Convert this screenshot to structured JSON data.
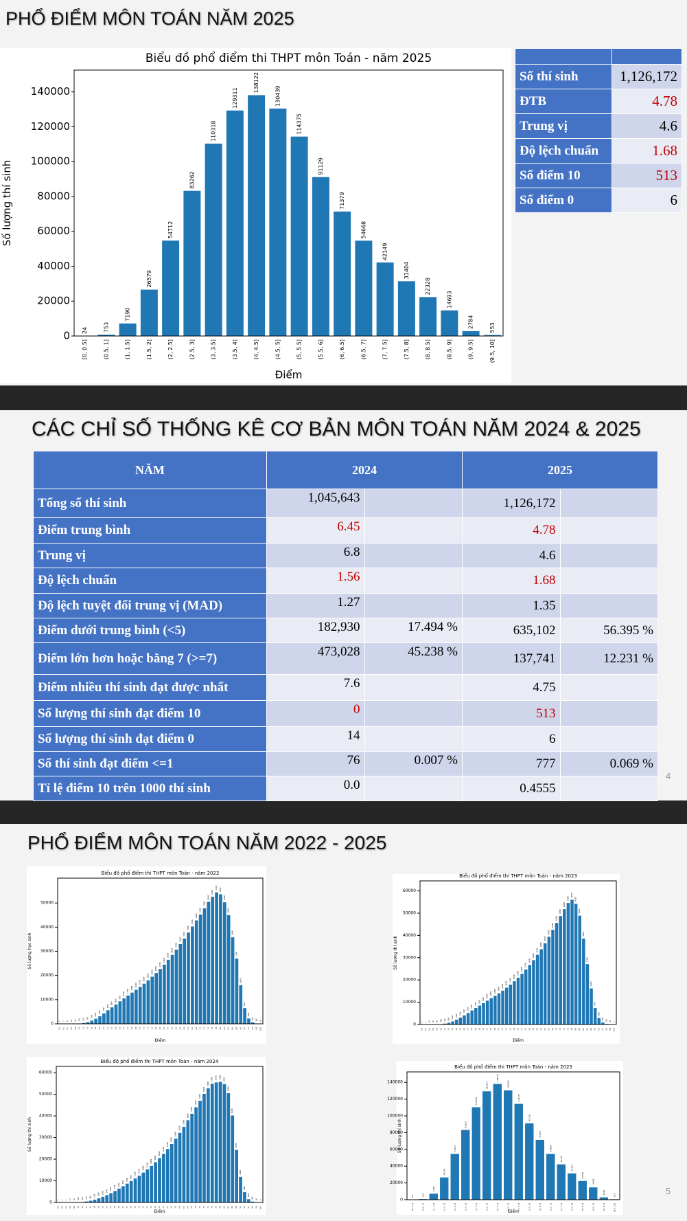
{
  "section_titles": [
    "PHỔ ĐIỂM MÔN TOÁN NĂM 2025",
    "CÁC CHỈ SỐ THỐNG KÊ CƠ BẢN MÔN TOÁN NĂM 2024 & 2025",
    "PHỔ ĐIỂM MÔN TOÁN NĂM 2022 - 2025"
  ],
  "page_numbers": [
    4,
    5
  ],
  "stats_table": {
    "highlight_color": "#c00000",
    "rows": [
      {
        "label": "Số thí sinh",
        "value": "1,126,172",
        "highlight": false
      },
      {
        "label": "ĐTB",
        "value": "4.78",
        "highlight": true
      },
      {
        "label": "Trung vị",
        "value": "4.6",
        "highlight": false
      },
      {
        "label": "Độ lệch chuẩn",
        "value": "1.68",
        "highlight": true
      },
      {
        "label": "Số điểm 10",
        "value": "513",
        "highlight": true
      },
      {
        "label": "Số điểm 0",
        "value": "6",
        "highlight": false
      }
    ]
  },
  "comparison_table": {
    "highlight_color": "#c00000",
    "header": [
      "NĂM",
      "2024",
      "2025"
    ],
    "rows": [
      {
        "cells": [
          "Tổng số thí sinh",
          "1,045,643",
          null,
          "1,126,172",
          null
        ],
        "highlight": false
      },
      {
        "cells": [
          "Điểm trung bình",
          "6.45",
          null,
          "4.78",
          null
        ],
        "highlight": true
      },
      {
        "cells": [
          "Trung vị",
          "6.8",
          null,
          "4.6",
          null
        ],
        "highlight": false
      },
      {
        "cells": [
          "Độ lệch chuẩn",
          "1.56",
          null,
          "1.68",
          null
        ],
        "highlight": true
      },
      {
        "cells": [
          "Độ lệch tuyệt đối trung vị (MAD)",
          "1.27",
          null,
          "1.35",
          null
        ],
        "highlight": false
      },
      {
        "cells": [
          "Điểm dưới trung bình (<5)",
          "182,930",
          "17.494 %",
          "635,102",
          "56.395 %"
        ],
        "highlight": false
      },
      {
        "cells": [
          "Điểm lớn hơn hoặc bằng 7 (>=7)",
          "473,028",
          "45.238 %",
          "137,741",
          "12.231 %"
        ],
        "highlight": false
      },
      {
        "cells": [
          "Điểm nhiều thí sinh đạt được nhất",
          "7.6",
          null,
          "4.75",
          null
        ],
        "highlight": false
      },
      {
        "cells": [
          "Số lượng thí sinh đạt điểm 10",
          "0",
          null,
          "513",
          null
        ],
        "highlight": true
      },
      {
        "cells": [
          "Số lượng thí sinh đạt điểm 0",
          "14",
          null,
          "6",
          null
        ],
        "highlight": false
      },
      {
        "cells": [
          "Số thí sinh đạt điểm <=1",
          "76",
          "0.007 %",
          "777",
          "0.069 %"
        ],
        "highlight": false
      },
      {
        "cells": [
          "Tỉ lệ điểm 10 trên 1000 thí sinh",
          "0.0",
          null,
          "0.4555",
          null
        ],
        "highlight": false
      }
    ]
  },
  "chart_data": [
    {
      "type": "bar",
      "title": "Biểu đồ phổ điểm thi THPT môn Toán - năm 2025",
      "x_label": "Điểm",
      "y_label": "Số lượng thí sinh",
      "color": "#1f77b4",
      "categories": [
        "[0, 0.5]",
        "(0.5, 1]",
        "(1, 1.5]",
        "(1.5, 2]",
        "(2, 2.5]",
        "(2.5, 3]",
        "(3, 3.5]",
        "(3.5, 4]",
        "(4, 4.5]",
        "(4.5, 5]",
        "(5, 5.5]",
        "(5.5, 6]",
        "(6, 6.5]",
        "(6.5, 7]",
        "(7, 7.5]",
        "(7.5, 8]",
        "(8, 8.5]",
        "(8.5, 9]",
        "(9, 9.5]",
        "(9.5, 10]"
      ],
      "values": [
        24,
        753,
        7190,
        26579,
        54712,
        83262,
        110318,
        129311,
        138122,
        130439,
        114375,
        91129,
        71379,
        54668,
        42149,
        31404,
        22328,
        14693,
        2784,
        553
      ],
      "ylim": [
        0,
        152500
      ],
      "yticks": [
        0,
        20000,
        40000,
        60000,
        80000,
        100000,
        120000,
        140000
      ]
    },
    {
      "type": "bar",
      "title": "Biểu đồ phổ điểm thi THPT môn Toán - năm 2022",
      "x_label": "Điểm",
      "y_label": "Số lượng học sinh",
      "color": "#1f77b4",
      "categories": [
        "0.0",
        "0.2",
        "0.4",
        "0.6",
        "0.8",
        "1.0",
        "1.2",
        "1.4",
        "1.6",
        "1.8",
        "2.0",
        "2.2",
        "2.4",
        "2.6",
        "2.8",
        "3.0",
        "3.2",
        "3.4",
        "3.6",
        "3.8",
        "4.0",
        "4.2",
        "4.4",
        "4.6",
        "4.8",
        "5.0",
        "5.2",
        "5.4",
        "5.6",
        "5.8",
        "6.0",
        "6.2",
        "6.4",
        "6.6",
        "6.8",
        "7.0",
        "7.2",
        "7.4",
        "7.6",
        "7.8",
        "8.0",
        "8.2",
        "8.4",
        "8.6",
        "8.8",
        "9.0",
        "9.2",
        "9.4",
        "9.6",
        "9.8",
        "10.0"
      ],
      "values": [
        5,
        3,
        8,
        20,
        60,
        150,
        350,
        700,
        1300,
        2100,
        3100,
        4300,
        5600,
        6800,
        8000,
        9300,
        10500,
        11700,
        12900,
        14100,
        15300,
        16600,
        18000,
        19500,
        21000,
        22700,
        24500,
        26500,
        28500,
        30700,
        33000,
        35300,
        37800,
        40300,
        42800,
        45200,
        47800,
        50500,
        52600,
        54400,
        53600,
        50300,
        45000,
        35800,
        27000,
        16000,
        6500,
        2200,
        600,
        100,
        10
      ],
      "ylim": [
        0,
        60300
      ],
      "yticks": [
        0,
        10000,
        20000,
        30000,
        40000,
        50000
      ]
    },
    {
      "type": "bar",
      "title": "Biểu đồ phổ điểm thi THPT môn Toán - năm 2023",
      "x_label": "Điểm",
      "y_label": "Số lượng thí sinh",
      "color": "#1f77b4",
      "categories": [
        "0.0",
        "0.2",
        "0.4",
        "0.6",
        "0.8",
        "1.0",
        "1.2",
        "1.4",
        "1.6",
        "1.8",
        "2.0",
        "2.2",
        "2.4",
        "2.6",
        "2.8",
        "3.0",
        "3.2",
        "3.4",
        "3.6",
        "3.8",
        "4.0",
        "4.2",
        "4.4",
        "4.6",
        "4.8",
        "5.0",
        "5.2",
        "5.4",
        "5.6",
        "5.8",
        "6.0",
        "6.2",
        "6.4",
        "6.6",
        "6.8",
        "7.0",
        "7.2",
        "7.4",
        "7.6",
        "7.8",
        "8.0",
        "8.2",
        "8.4",
        "8.6",
        "8.8",
        "9.0",
        "9.2",
        "9.4",
        "9.6",
        "9.8",
        "10.0"
      ],
      "values": [
        2,
        4,
        10,
        30,
        80,
        180,
        400,
        800,
        1400,
        2200,
        3100,
        4100,
        5200,
        6300,
        7400,
        8500,
        9600,
        10700,
        11800,
        12900,
        14000,
        15200,
        16500,
        17900,
        19400,
        21000,
        22800,
        24700,
        26700,
        28900,
        31300,
        33800,
        36500,
        39400,
        42500,
        45600,
        48700,
        51800,
        54600,
        56000,
        54200,
        48900,
        38600,
        27100,
        16200,
        7400,
        2900,
        900,
        250,
        60,
        5
      ],
      "ylim": [
        0,
        64500
      ],
      "yticks": [
        0,
        10000,
        20000,
        30000,
        40000,
        50000,
        60000
      ]
    },
    {
      "type": "bar",
      "title": "Biểu đồ phổ điểm thi THPT môn Toán - năm 2024",
      "x_label": "Điểm",
      "y_label": "Số lượng thí sinh",
      "color": "#1f77b4",
      "categories": [
        "0.0",
        "0.2",
        "0.4",
        "0.6",
        "0.8",
        "1.0",
        "1.2",
        "1.4",
        "1.6",
        "1.8",
        "2.0",
        "2.2",
        "2.4",
        "2.6",
        "2.8",
        "3.0",
        "3.2",
        "3.4",
        "3.6",
        "3.8",
        "4.0",
        "4.2",
        "4.4",
        "4.6",
        "4.8",
        "5.0",
        "5.2",
        "5.4",
        "5.6",
        "5.8",
        "6.0",
        "6.2",
        "6.4",
        "6.6",
        "6.8",
        "7.0",
        "7.2",
        "7.4",
        "7.6",
        "7.8",
        "8.0",
        "8.2",
        "8.4",
        "8.6",
        "8.8",
        "9.0",
        "9.2",
        "9.4",
        "9.6",
        "9.8",
        "10.0"
      ],
      "values": [
        3,
        2,
        6,
        15,
        40,
        100,
        220,
        450,
        800,
        1300,
        1900,
        2600,
        3400,
        4300,
        5300,
        6400,
        7500,
        8700,
        9900,
        11100,
        12400,
        13800,
        15300,
        16900,
        18600,
        20500,
        22500,
        24700,
        27000,
        29500,
        32200,
        35000,
        38000,
        41000,
        44000,
        47000,
        50200,
        52800,
        54900,
        55500,
        55800,
        54700,
        50500,
        40200,
        24300,
        11800,
        4800,
        1500,
        400,
        60,
        0
      ],
      "ylim": [
        0,
        62900
      ],
      "yticks": [
        0,
        10000,
        20000,
        30000,
        40000,
        50000,
        60000
      ]
    },
    {
      "type": "bar",
      "title": "Biểu đồ phổ điểm thi THPT môn Toán - năm 2025",
      "x_label": "Điểm",
      "y_label": "Số lượng thí sinh",
      "color": "#1f77b4",
      "categories": [
        "[0, 0.5]",
        "(0.5, 1]",
        "(1, 1.5]",
        "(1.5, 2]",
        "(2, 2.5]",
        "(2.5, 3]",
        "(3, 3.5]",
        "(3.5, 4]",
        "(4, 4.5]",
        "(4.5, 5]",
        "(5, 5.5]",
        "(5.5, 6]",
        "(6, 6.5]",
        "(6.5, 7]",
        "(7, 7.5]",
        "(7.5, 8]",
        "(8, 8.5]",
        "(8.5, 9]",
        "(9, 9.5]",
        "(9.5, 10]"
      ],
      "values": [
        24,
        753,
        7190,
        26579,
        54712,
        83262,
        110318,
        129311,
        138122,
        130439,
        114375,
        91129,
        71379,
        54668,
        42149,
        31404,
        22328,
        14693,
        2784,
        553
      ],
      "ylim": [
        0,
        152500
      ],
      "yticks": [
        0,
        20000,
        40000,
        60000,
        80000,
        100000,
        120000,
        140000
      ]
    }
  ]
}
